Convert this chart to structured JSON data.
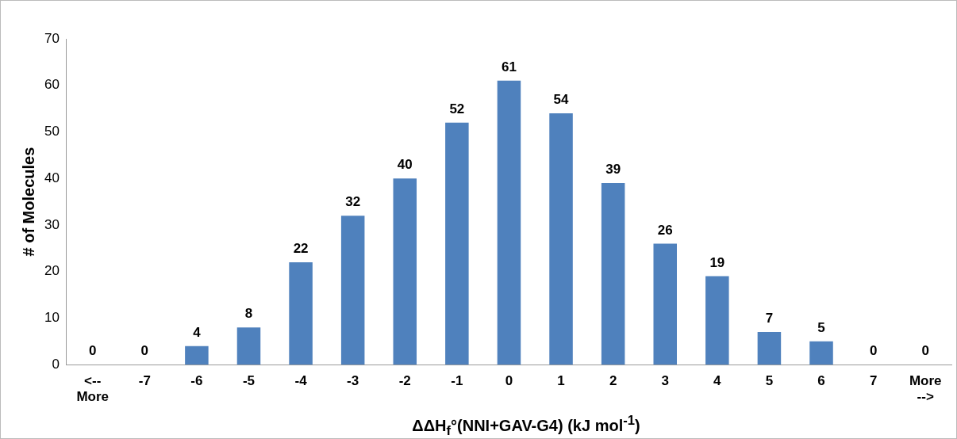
{
  "chart_data": {
    "type": "bar",
    "xlabel": "ΔΔH$_{f}$°(NNI+GAV-G4)   (kJ mol$^{-1}$)",
    "ylabel": "# of Molecules",
    "categories": [
      "<-- More",
      "-7",
      "-6",
      "-5",
      "-4",
      "-3",
      "-2",
      "-1",
      "0",
      "1",
      "2",
      "3",
      "4",
      "5",
      "6",
      "7",
      "More -->"
    ],
    "values": [
      0,
      0,
      4,
      8,
      22,
      32,
      40,
      52,
      61,
      54,
      39,
      26,
      19,
      7,
      5,
      0,
      0
    ],
    "color": "#4f81bd",
    "ylim": [
      0,
      70
    ],
    "yticks": [
      0,
      10,
      20,
      30,
      40,
      50,
      60,
      70
    ],
    "grid": false,
    "data_labels": true
  }
}
